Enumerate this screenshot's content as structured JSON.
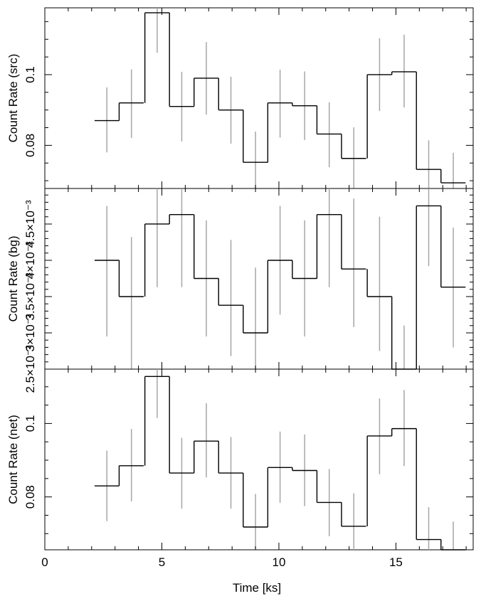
{
  "chart_data": [
    {
      "type": "line",
      "panel": "src",
      "ylabel": "Count Rate (src)",
      "xlim": [
        0,
        18.3
      ],
      "ylim": [
        0.0678,
        0.1189
      ],
      "yticks": [
        0.08,
        0.1
      ],
      "ytick_labels": [
        "0.08",
        "0.1"
      ],
      "x": [
        2.65,
        3.7,
        4.8,
        5.85,
        6.9,
        7.95,
        9.0,
        10.05,
        11.1,
        12.15,
        13.2,
        14.3,
        15.35,
        16.4,
        17.45
      ],
      "values": [
        0.087,
        0.092,
        0.1175,
        0.091,
        0.099,
        0.09,
        0.0752,
        0.092,
        0.0912,
        0.0832,
        0.0763,
        0.1,
        0.1008,
        0.0732,
        0.0694
      ],
      "err_low": [
        0.078,
        0.0821,
        0.1062,
        0.0811,
        0.0887,
        0.0805,
        0.0668,
        0.0822,
        0.0815,
        0.0738,
        0.0673,
        0.0897,
        0.0907,
        0.0648,
        0.0628
      ],
      "err_high": [
        0.0964,
        0.1015,
        0.1201,
        0.1008,
        0.1092,
        0.0994,
        0.0839,
        0.1014,
        0.1009,
        0.0922,
        0.0851,
        0.1103,
        0.1113,
        0.0814,
        0.0779
      ]
    },
    {
      "type": "line",
      "panel": "bg",
      "ylabel": "Count Rate (bg)",
      "xlim": [
        0,
        18.3
      ],
      "ylim": [
        0.0025,
        0.00499
      ],
      "yticks": [
        0.0025,
        0.003,
        0.0035,
        0.004,
        0.0045
      ],
      "ytick_labels": [
        "2.5×10⁻³",
        "3×10⁻³",
        "3.5×10⁻³",
        "4×10⁻³",
        "4.5×10⁻³"
      ],
      "x": [
        2.65,
        3.7,
        4.8,
        5.85,
        6.9,
        7.95,
        9.0,
        10.05,
        11.1,
        12.15,
        13.2,
        14.3,
        15.35,
        16.4,
        17.45
      ],
      "values": [
        0.004,
        0.0035,
        0.0045,
        0.00463,
        0.00375,
        0.00338,
        0.003,
        0.004,
        0.00375,
        0.00463,
        0.00388,
        0.0035,
        0.00238,
        0.00475,
        0.00363
      ],
      "err_low": [
        0.00295,
        0.00245,
        0.00363,
        0.00363,
        0.00295,
        0.00268,
        0.0025,
        0.00325,
        0.00295,
        0.00363,
        0.00308,
        0.00275,
        0.0025,
        0.00392,
        0.0028
      ],
      "err_high": [
        0.00475,
        0.00432,
        0.00499,
        0.00499,
        0.00455,
        0.00428,
        0.0039,
        0.00475,
        0.00455,
        0.00499,
        0.00485,
        0.0046,
        0.0031,
        0.00499,
        0.00445
      ]
    },
    {
      "type": "line",
      "panel": "net",
      "ylabel": "Count Rate (net)",
      "xlim": [
        0,
        18.3
      ],
      "ylim": [
        0.0656,
        0.1148
      ],
      "yticks": [
        0.08,
        0.1
      ],
      "ytick_labels": [
        "0.08",
        "0.1"
      ],
      "xticks": [
        0,
        5,
        10,
        15
      ],
      "xtick_labels": [
        "0",
        "5",
        "10",
        "15"
      ],
      "xlabel": "Time [ks]",
      "x": [
        2.65,
        3.7,
        4.8,
        5.85,
        6.9,
        7.95,
        9.0,
        10.05,
        11.1,
        12.15,
        13.2,
        14.3,
        15.35,
        16.4,
        17.45
      ],
      "values": [
        0.083,
        0.0885,
        0.1128,
        0.0865,
        0.0952,
        0.0865,
        0.0718,
        0.088,
        0.0872,
        0.0785,
        0.072,
        0.0966,
        0.0986,
        0.0684,
        0.0655
      ],
      "err_low": [
        0.0734,
        0.0788,
        0.1015,
        0.0768,
        0.0853,
        0.0768,
        0.0626,
        0.0784,
        0.0775,
        0.0693,
        0.0626,
        0.0862,
        0.0884,
        0.0596,
        0.0575
      ],
      "err_high": [
        0.0926,
        0.0985,
        0.1148,
        0.0961,
        0.1055,
        0.0963,
        0.0808,
        0.0978,
        0.097,
        0.0876,
        0.081,
        0.1068,
        0.1091,
        0.0772,
        0.0733
      ]
    }
  ]
}
